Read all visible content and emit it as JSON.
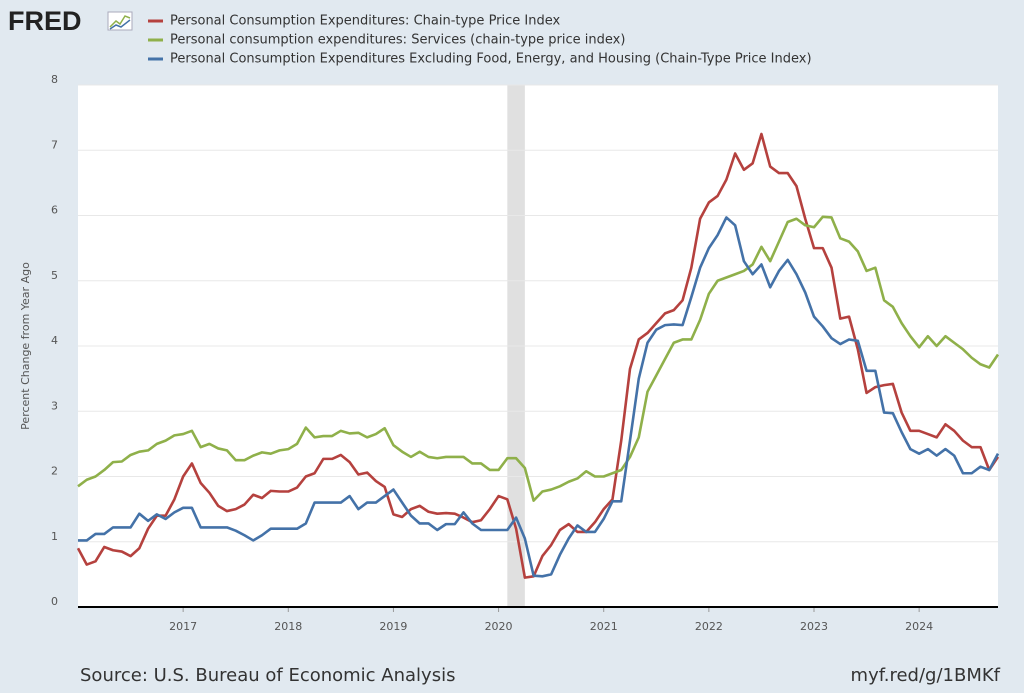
{
  "chart_data": {
    "type": "line",
    "logo": "FRED",
    "ylabel": "Percent Change from Year Ago",
    "source": "Source: U.S. Bureau of Economic Analysis",
    "link": "myf.red/g/1BMKf",
    "xlim": [
      2016,
      2024.75
    ],
    "xticks": [
      2017,
      2018,
      2019,
      2020,
      2021,
      2022,
      2023,
      2024
    ],
    "ylim": [
      0,
      8
    ],
    "yticks": [
      0,
      1,
      2,
      3,
      4,
      5,
      6,
      7,
      8
    ],
    "grid": true,
    "recessions": [
      {
        "start": 2020.0833,
        "end": 2020.25
      }
    ],
    "x": [
      2016,
      2016.0833,
      2016.1667,
      2016.25,
      2016.3333,
      2016.4167,
      2016.5,
      2016.5833,
      2016.6667,
      2016.75,
      2016.8333,
      2016.9167,
      2017,
      2017.0833,
      2017.1667,
      2017.25,
      2017.3333,
      2017.4167,
      2017.5,
      2017.5833,
      2017.6667,
      2017.75,
      2017.8333,
      2017.9167,
      2018,
      2018.0833,
      2018.1667,
      2018.25,
      2018.3333,
      2018.4167,
      2018.5,
      2018.5833,
      2018.6667,
      2018.75,
      2018.8333,
      2018.9167,
      2019,
      2019.0833,
      2019.1667,
      2019.25,
      2019.3333,
      2019.4167,
      2019.5,
      2019.5833,
      2019.6667,
      2019.75,
      2019.8333,
      2019.9167,
      2020,
      2020.0833,
      2020.1667,
      2020.25,
      2020.3333,
      2020.4167,
      2020.5,
      2020.5833,
      2020.6667,
      2020.75,
      2020.8333,
      2020.9167,
      2021,
      2021.0833,
      2021.1667,
      2021.25,
      2021.3333,
      2021.4167,
      2021.5,
      2021.5833,
      2021.6667,
      2021.75,
      2021.8333,
      2021.9167,
      2022,
      2022.0833,
      2022.1667,
      2022.25,
      2022.3333,
      2022.4167,
      2022.5,
      2022.5833,
      2022.6667,
      2022.75,
      2022.8333,
      2022.9167,
      2023,
      2023.0833,
      2023.1667,
      2023.25,
      2023.3333,
      2023.4167,
      2023.5,
      2023.5833,
      2023.6667,
      2023.75,
      2023.8333,
      2023.9167,
      2024,
      2024.0833,
      2024.1667,
      2024.25,
      2024.3333,
      2024.4167,
      2024.5,
      2024.5833,
      2024.6667,
      2024.75
    ],
    "series": [
      {
        "name": "Personal Consumption Expenditures: Chain-type Price Index",
        "color": "#b5413e",
        "values": [
          0.9,
          0.65,
          0.7,
          0.92,
          0.87,
          0.85,
          0.78,
          0.9,
          1.2,
          1.4,
          1.4,
          1.65,
          2.0,
          2.2,
          1.9,
          1.75,
          1.55,
          1.47,
          1.5,
          1.57,
          1.72,
          1.67,
          1.78,
          1.77,
          1.77,
          1.83,
          2.0,
          2.05,
          2.27,
          2.27,
          2.33,
          2.22,
          2.03,
          2.06,
          1.93,
          1.84,
          1.42,
          1.38,
          1.5,
          1.55,
          1.46,
          1.43,
          1.44,
          1.43,
          1.37,
          1.3,
          1.33,
          1.5,
          1.7,
          1.65,
          1.2,
          0.45,
          0.47,
          0.78,
          0.95,
          1.18,
          1.27,
          1.15,
          1.15,
          1.3,
          1.5,
          1.65,
          2.55,
          3.65,
          4.1,
          4.2,
          4.35,
          4.5,
          4.55,
          4.7,
          5.2,
          5.95,
          6.2,
          6.3,
          6.55,
          6.95,
          6.7,
          6.8,
          7.25,
          6.75,
          6.65,
          6.65,
          6.45,
          5.95,
          5.5,
          5.5,
          5.2,
          4.42,
          4.45,
          3.95,
          3.28,
          3.37,
          3.4,
          3.42,
          2.98,
          2.7,
          2.7,
          2.65,
          2.6,
          2.8,
          2.7,
          2.55,
          2.45,
          2.45,
          2.1,
          2.3
        ]
      },
      {
        "name": "Personal consumption expenditures: Services (chain-type price index)",
        "color": "#8fb04a",
        "values": [
          1.85,
          1.95,
          2.0,
          2.1,
          2.22,
          2.23,
          2.33,
          2.38,
          2.4,
          2.5,
          2.55,
          2.63,
          2.65,
          2.7,
          2.45,
          2.5,
          2.43,
          2.4,
          2.25,
          2.25,
          2.32,
          2.37,
          2.35,
          2.4,
          2.42,
          2.5,
          2.75,
          2.6,
          2.62,
          2.62,
          2.7,
          2.66,
          2.67,
          2.6,
          2.65,
          2.74,
          2.48,
          2.38,
          2.3,
          2.38,
          2.3,
          2.28,
          2.3,
          2.3,
          2.3,
          2.2,
          2.2,
          2.1,
          2.1,
          2.28,
          2.28,
          2.13,
          1.63,
          1.77,
          1.8,
          1.85,
          1.92,
          1.97,
          2.08,
          2.0,
          2.0,
          2.05,
          2.1,
          2.3,
          2.6,
          3.3,
          3.55,
          3.8,
          4.05,
          4.1,
          4.1,
          4.4,
          4.8,
          5.0,
          5.05,
          5.1,
          5.15,
          5.25,
          5.52,
          5.3,
          5.6,
          5.9,
          5.95,
          5.85,
          5.82,
          5.98,
          5.97,
          5.65,
          5.6,
          5.45,
          5.15,
          5.2,
          4.7,
          4.6,
          4.35,
          4.15,
          3.98,
          4.15,
          4.0,
          4.15,
          4.05,
          3.95,
          3.82,
          3.72,
          3.67,
          3.87
        ]
      },
      {
        "name": "Personal Consumption Expenditures Excluding Food, Energy, and Housing (Chain-Type Price Index)",
        "color": "#4472a8",
        "values": [
          1.02,
          1.02,
          1.12,
          1.12,
          1.22,
          1.22,
          1.22,
          1.43,
          1.32,
          1.42,
          1.35,
          1.45,
          1.52,
          1.52,
          1.22,
          1.22,
          1.22,
          1.22,
          1.17,
          1.1,
          1.02,
          1.1,
          1.2,
          1.2,
          1.2,
          1.2,
          1.28,
          1.6,
          1.6,
          1.6,
          1.6,
          1.7,
          1.5,
          1.6,
          1.6,
          1.7,
          1.8,
          1.6,
          1.4,
          1.28,
          1.28,
          1.18,
          1.27,
          1.27,
          1.45,
          1.28,
          1.18,
          1.18,
          1.18,
          1.18,
          1.37,
          1.05,
          0.48,
          0.47,
          0.5,
          0.8,
          1.05,
          1.25,
          1.15,
          1.15,
          1.35,
          1.62,
          1.62,
          2.55,
          3.5,
          4.05,
          4.25,
          4.32,
          4.33,
          4.32,
          4.75,
          5.2,
          5.5,
          5.7,
          5.97,
          5.85,
          5.3,
          5.1,
          5.25,
          4.9,
          5.15,
          5.32,
          5.1,
          4.82,
          4.45,
          4.3,
          4.12,
          4.03,
          4.1,
          4.08,
          3.62,
          3.62,
          2.98,
          2.97,
          2.68,
          2.42,
          2.35,
          2.42,
          2.32,
          2.42,
          2.32,
          2.05,
          2.05,
          2.15,
          2.1,
          2.35
        ]
      }
    ]
  }
}
